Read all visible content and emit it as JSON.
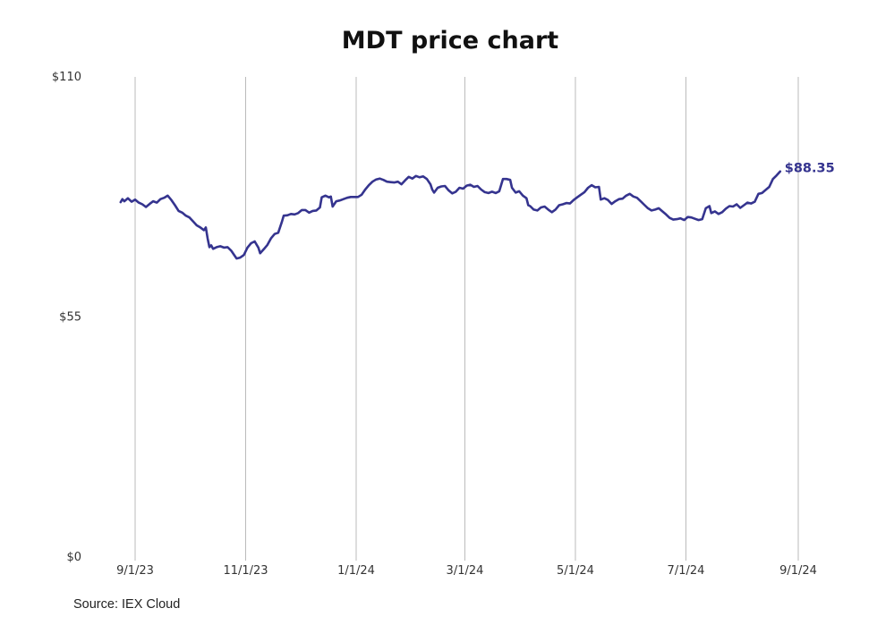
{
  "chart_data": {
    "type": "line",
    "title": "MDT price chart",
    "source": "Source: IEX Cloud",
    "xlabel": "",
    "ylabel": "",
    "x_ticks": [
      "2023-09-01",
      "2023-11-01",
      "2024-01-01",
      "2024-03-01",
      "2024-05-01",
      "2024-07-01",
      "2024-09-01"
    ],
    "x_tick_labels": [
      "9/1/23",
      "11/1/23",
      "1/1/24",
      "3/1/24",
      "5/1/24",
      "7/1/24",
      "9/1/24"
    ],
    "y_ticks": [
      0,
      55,
      110
    ],
    "y_tick_labels": [
      "$0",
      "$55",
      "$110"
    ],
    "ylim": [
      0,
      110
    ],
    "xlim": [
      "2023-08-23",
      "2024-09-07"
    ],
    "grid": {
      "vertical": true,
      "horizontal": false
    },
    "line_color": "#35348f",
    "last_value_label": "$88.35",
    "series": [
      {
        "values": [
          [
            "2023-08-24",
            81.3
          ],
          [
            "2023-08-25",
            82.0
          ],
          [
            "2023-08-26",
            81.5
          ],
          [
            "2023-08-28",
            82.2
          ],
          [
            "2023-08-30",
            81.4
          ],
          [
            "2023-09-01",
            81.9
          ],
          [
            "2023-09-03",
            81.2
          ],
          [
            "2023-09-05",
            80.8
          ],
          [
            "2023-09-07",
            80.2
          ],
          [
            "2023-09-09",
            80.9
          ],
          [
            "2023-09-11",
            81.5
          ],
          [
            "2023-09-13",
            81.2
          ],
          [
            "2023-09-15",
            82.0
          ],
          [
            "2023-09-17",
            82.3
          ],
          [
            "2023-09-19",
            82.8
          ],
          [
            "2023-09-21",
            81.8
          ],
          [
            "2023-09-23",
            80.6
          ],
          [
            "2023-09-25",
            79.3
          ],
          [
            "2023-09-27",
            78.9
          ],
          [
            "2023-09-29",
            78.2
          ],
          [
            "2023-10-01",
            77.8
          ],
          [
            "2023-10-03",
            76.9
          ],
          [
            "2023-10-05",
            76.0
          ],
          [
            "2023-10-07",
            75.5
          ],
          [
            "2023-10-09",
            74.9
          ],
          [
            "2023-10-10",
            75.5
          ],
          [
            "2023-10-11",
            73.0
          ],
          [
            "2023-10-12",
            71.0
          ],
          [
            "2023-10-13",
            71.4
          ],
          [
            "2023-10-14",
            70.6
          ],
          [
            "2023-10-16",
            71.0
          ],
          [
            "2023-10-18",
            71.2
          ],
          [
            "2023-10-20",
            70.9
          ],
          [
            "2023-10-22",
            71.0
          ],
          [
            "2023-10-24",
            70.2
          ],
          [
            "2023-10-26",
            69.0
          ],
          [
            "2023-10-27",
            68.4
          ],
          [
            "2023-10-29",
            68.6
          ],
          [
            "2023-10-31",
            69.2
          ],
          [
            "2023-11-02",
            70.9
          ],
          [
            "2023-11-04",
            71.9
          ],
          [
            "2023-11-06",
            72.3
          ],
          [
            "2023-11-08",
            70.9
          ],
          [
            "2023-11-09",
            69.6
          ],
          [
            "2023-11-11",
            70.5
          ],
          [
            "2023-11-13",
            71.5
          ],
          [
            "2023-11-15",
            73.0
          ],
          [
            "2023-11-17",
            74.0
          ],
          [
            "2023-11-19",
            74.3
          ],
          [
            "2023-11-21",
            76.8
          ],
          [
            "2023-11-22",
            78.2
          ],
          [
            "2023-11-24",
            78.3
          ],
          [
            "2023-11-26",
            78.6
          ],
          [
            "2023-11-28",
            78.5
          ],
          [
            "2023-11-30",
            78.8
          ],
          [
            "2023-12-02",
            79.5
          ],
          [
            "2023-12-04",
            79.5
          ],
          [
            "2023-12-06",
            78.9
          ],
          [
            "2023-12-08",
            79.3
          ],
          [
            "2023-12-10",
            79.4
          ],
          [
            "2023-12-12",
            80.1
          ],
          [
            "2023-12-13",
            82.4
          ],
          [
            "2023-12-15",
            82.8
          ],
          [
            "2023-12-17",
            82.4
          ],
          [
            "2023-12-18",
            82.6
          ],
          [
            "2023-12-19",
            80.3
          ],
          [
            "2023-12-21",
            81.5
          ],
          [
            "2023-12-23",
            81.7
          ],
          [
            "2023-12-25",
            82.0
          ],
          [
            "2023-12-27",
            82.3
          ],
          [
            "2023-12-29",
            82.5
          ],
          [
            "2024-01-02",
            82.5
          ],
          [
            "2024-01-04",
            83.0
          ],
          [
            "2024-01-06",
            84.2
          ],
          [
            "2024-01-08",
            85.2
          ],
          [
            "2024-01-10",
            86.0
          ],
          [
            "2024-01-12",
            86.5
          ],
          [
            "2024-01-14",
            86.7
          ],
          [
            "2024-01-16",
            86.4
          ],
          [
            "2024-01-18",
            86.0
          ],
          [
            "2024-01-20",
            85.9
          ],
          [
            "2024-01-22",
            85.8
          ],
          [
            "2024-01-24",
            86.0
          ],
          [
            "2024-01-26",
            85.4
          ],
          [
            "2024-01-28",
            86.3
          ],
          [
            "2024-01-30",
            87.1
          ],
          [
            "2024-02-01",
            86.7
          ],
          [
            "2024-02-03",
            87.3
          ],
          [
            "2024-02-05",
            87.0
          ],
          [
            "2024-02-07",
            87.2
          ],
          [
            "2024-02-09",
            86.6
          ],
          [
            "2024-02-11",
            85.4
          ],
          [
            "2024-02-12",
            84.2
          ],
          [
            "2024-02-13",
            83.5
          ],
          [
            "2024-02-15",
            84.6
          ],
          [
            "2024-02-17",
            84.9
          ],
          [
            "2024-02-19",
            85.0
          ],
          [
            "2024-02-21",
            84.0
          ],
          [
            "2024-02-23",
            83.3
          ],
          [
            "2024-02-25",
            83.7
          ],
          [
            "2024-02-27",
            84.6
          ],
          [
            "2024-02-29",
            84.4
          ],
          [
            "2024-03-02",
            85.1
          ],
          [
            "2024-03-04",
            85.3
          ],
          [
            "2024-03-06",
            84.8
          ],
          [
            "2024-03-08",
            85.0
          ],
          [
            "2024-03-10",
            84.2
          ],
          [
            "2024-03-12",
            83.6
          ],
          [
            "2024-03-14",
            83.4
          ],
          [
            "2024-03-16",
            83.7
          ],
          [
            "2024-03-18",
            83.4
          ],
          [
            "2024-03-20",
            83.8
          ],
          [
            "2024-03-22",
            86.6
          ],
          [
            "2024-03-24",
            86.6
          ],
          [
            "2024-03-26",
            86.4
          ],
          [
            "2024-03-27",
            84.6
          ],
          [
            "2024-03-29",
            83.5
          ],
          [
            "2024-03-31",
            83.8
          ],
          [
            "2024-04-02",
            82.8
          ],
          [
            "2024-04-04",
            82.2
          ],
          [
            "2024-04-05",
            80.6
          ],
          [
            "2024-04-06",
            80.4
          ],
          [
            "2024-04-08",
            79.6
          ],
          [
            "2024-04-10",
            79.4
          ],
          [
            "2024-04-12",
            80.1
          ],
          [
            "2024-04-14",
            80.3
          ],
          [
            "2024-04-16",
            79.6
          ],
          [
            "2024-04-18",
            79.0
          ],
          [
            "2024-04-20",
            79.6
          ],
          [
            "2024-04-22",
            80.6
          ],
          [
            "2024-04-24",
            80.8
          ],
          [
            "2024-04-26",
            81.1
          ],
          [
            "2024-04-28",
            81.0
          ],
          [
            "2024-04-30",
            81.8
          ],
          [
            "2024-05-02",
            82.4
          ],
          [
            "2024-05-04",
            83.0
          ],
          [
            "2024-05-06",
            83.6
          ],
          [
            "2024-05-08",
            84.6
          ],
          [
            "2024-05-10",
            85.2
          ],
          [
            "2024-05-12",
            84.7
          ],
          [
            "2024-05-14",
            84.8
          ],
          [
            "2024-05-15",
            81.9
          ],
          [
            "2024-05-17",
            82.2
          ],
          [
            "2024-05-19",
            81.8
          ],
          [
            "2024-05-21",
            80.9
          ],
          [
            "2024-05-23",
            81.5
          ],
          [
            "2024-05-25",
            82.0
          ],
          [
            "2024-05-27",
            82.1
          ],
          [
            "2024-05-29",
            82.8
          ],
          [
            "2024-05-31",
            83.2
          ],
          [
            "2024-06-02",
            82.6
          ],
          [
            "2024-06-04",
            82.3
          ],
          [
            "2024-06-06",
            81.5
          ],
          [
            "2024-06-08",
            80.7
          ],
          [
            "2024-06-10",
            79.9
          ],
          [
            "2024-06-12",
            79.4
          ],
          [
            "2024-06-14",
            79.6
          ],
          [
            "2024-06-16",
            79.9
          ],
          [
            "2024-06-18",
            79.2
          ],
          [
            "2024-06-20",
            78.5
          ],
          [
            "2024-06-22",
            77.7
          ],
          [
            "2024-06-24",
            77.3
          ],
          [
            "2024-06-26",
            77.4
          ],
          [
            "2024-06-28",
            77.6
          ],
          [
            "2024-06-30",
            77.2
          ],
          [
            "2024-07-02",
            77.9
          ],
          [
            "2024-07-04",
            77.8
          ],
          [
            "2024-07-06",
            77.5
          ],
          [
            "2024-07-08",
            77.2
          ],
          [
            "2024-07-10",
            77.4
          ],
          [
            "2024-07-12",
            79.9
          ],
          [
            "2024-07-14",
            80.4
          ],
          [
            "2024-07-15",
            78.8
          ],
          [
            "2024-07-17",
            79.2
          ],
          [
            "2024-07-19",
            78.6
          ],
          [
            "2024-07-21",
            79.0
          ],
          [
            "2024-07-23",
            79.8
          ],
          [
            "2024-07-25",
            80.4
          ],
          [
            "2024-07-27",
            80.3
          ],
          [
            "2024-07-29",
            80.8
          ],
          [
            "2024-07-31",
            80.0
          ],
          [
            "2024-08-02",
            80.6
          ],
          [
            "2024-08-04",
            81.2
          ],
          [
            "2024-08-06",
            81.0
          ],
          [
            "2024-08-08",
            81.4
          ],
          [
            "2024-08-10",
            83.2
          ],
          [
            "2024-08-12",
            83.4
          ],
          [
            "2024-08-14",
            84.1
          ],
          [
            "2024-08-16",
            84.8
          ],
          [
            "2024-08-18",
            86.6
          ],
          [
            "2024-08-20",
            87.4
          ],
          [
            "2024-08-22",
            88.35
          ]
        ]
      }
    ]
  }
}
